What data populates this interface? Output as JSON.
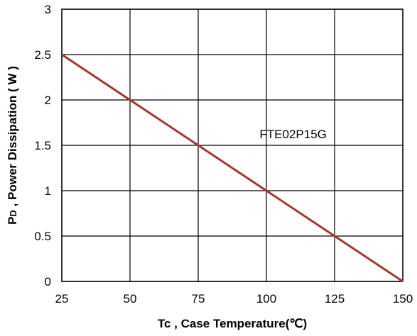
{
  "chart_data": {
    "type": "line",
    "x": [
      25,
      50,
      75,
      100,
      125,
      150
    ],
    "series": [
      {
        "values": [
          2.5,
          2.0,
          1.5,
          1.0,
          0.5,
          0.0
        ],
        "color": "#A0392E"
      }
    ],
    "xlabel": "Tc , Case Temperature(℃)",
    "ylabel_main": "P",
    "ylabel_sub": "D",
    "ylabel_rest": " , Power Dissipation ( W )",
    "xlim": [
      25,
      150
    ],
    "ylim": [
      0,
      3
    ],
    "xticks": [
      "25",
      "50",
      "75",
      "100",
      "125",
      "150"
    ],
    "yticks": [
      "0",
      "0.5",
      "1",
      "1.5",
      "2",
      "2.5",
      "3"
    ],
    "annotation": "FTE02P15G",
    "grid": true
  }
}
